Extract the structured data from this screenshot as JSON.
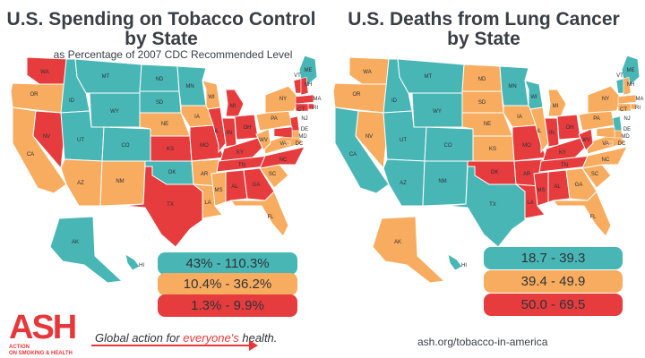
{
  "left": {
    "title_line1": "U.S. Spending on Tobacco Control",
    "title_line2": "by State",
    "subtitle": "as Percentage of 2007 CDC Recommended Level",
    "legend": [
      {
        "label": "43% - 110.3%",
        "color": "#49b6b6"
      },
      {
        "label": "10.4% - 36.2%",
        "color": "#f8ac5f"
      },
      {
        "label": "1.3% - 9.9%",
        "color": "#e63c3e"
      }
    ]
  },
  "right": {
    "title_line1": "U.S. Deaths from Lung Cancer",
    "title_line2": "by State",
    "legend": [
      {
        "label": "18.7 - 39.3",
        "color": "#49b6b6"
      },
      {
        "label": "39.4 - 49.9",
        "color": "#f8ac5f"
      },
      {
        "label": "50.0 - 69.5",
        "color": "#e63c3e"
      }
    ]
  },
  "left_states": {
    "WA": "red",
    "OR": "orange",
    "CA": "orange",
    "ID": "teal",
    "NV": "red",
    "UT": "teal",
    "AZ": "orange",
    "MT": "teal",
    "WY": "teal",
    "CO": "teal",
    "NM": "orange",
    "ND": "teal",
    "SD": "teal",
    "NE": "orange",
    "KS": "red",
    "OK": "teal",
    "TX": "red",
    "MN": "teal",
    "IA": "orange",
    "MO": "red",
    "AR": "orange",
    "LA": "orange",
    "WI": "orange",
    "IL": "red",
    "MI": "red",
    "IN": "red",
    "OH": "red",
    "KY": "red",
    "TN": "red",
    "MS": "orange",
    "AL": "red",
    "GA": "red",
    "FL": "orange",
    "SC": "orange",
    "NC": "red",
    "VA": "orange",
    "WV": "orange",
    "PA": "orange",
    "NY": "orange",
    "ME": "teal",
    "AK": "teal",
    "HI": "teal"
  },
  "right_states": {
    "WA": "orange",
    "OR": "orange",
    "CA": "teal",
    "ID": "teal",
    "NV": "orange",
    "UT": "teal",
    "AZ": "teal",
    "MT": "teal",
    "WY": "teal",
    "CO": "teal",
    "NM": "teal",
    "ND": "orange",
    "SD": "orange",
    "NE": "orange",
    "KS": "orange",
    "OK": "red",
    "TX": "teal",
    "MN": "teal",
    "IA": "orange",
    "MO": "red",
    "AR": "red",
    "LA": "red",
    "WI": "teal",
    "IL": "orange",
    "MI": "orange",
    "IN": "red",
    "OH": "red",
    "KY": "red",
    "TN": "red",
    "MS": "red",
    "AL": "red",
    "GA": "orange",
    "FL": "orange",
    "SC": "orange",
    "NC": "orange",
    "VA": "orange",
    "WV": "red",
    "PA": "orange",
    "NY": "orange",
    "ME": "teal",
    "AK": "orange",
    "HI": "teal"
  },
  "colors": {
    "teal": "#49b6b6",
    "orange": "#f8ac5f",
    "red": "#e63c3e"
  },
  "footer": {
    "url": "ash.org/tobacco-in-america",
    "logo_letters": "ASH",
    "logo_sub1": "ACTION",
    "logo_sub2": "ON SMOKING & HEALTH",
    "tagline_pre": "Global action for ",
    "tagline_hl": "everyone's",
    "tagline_post": " health."
  }
}
